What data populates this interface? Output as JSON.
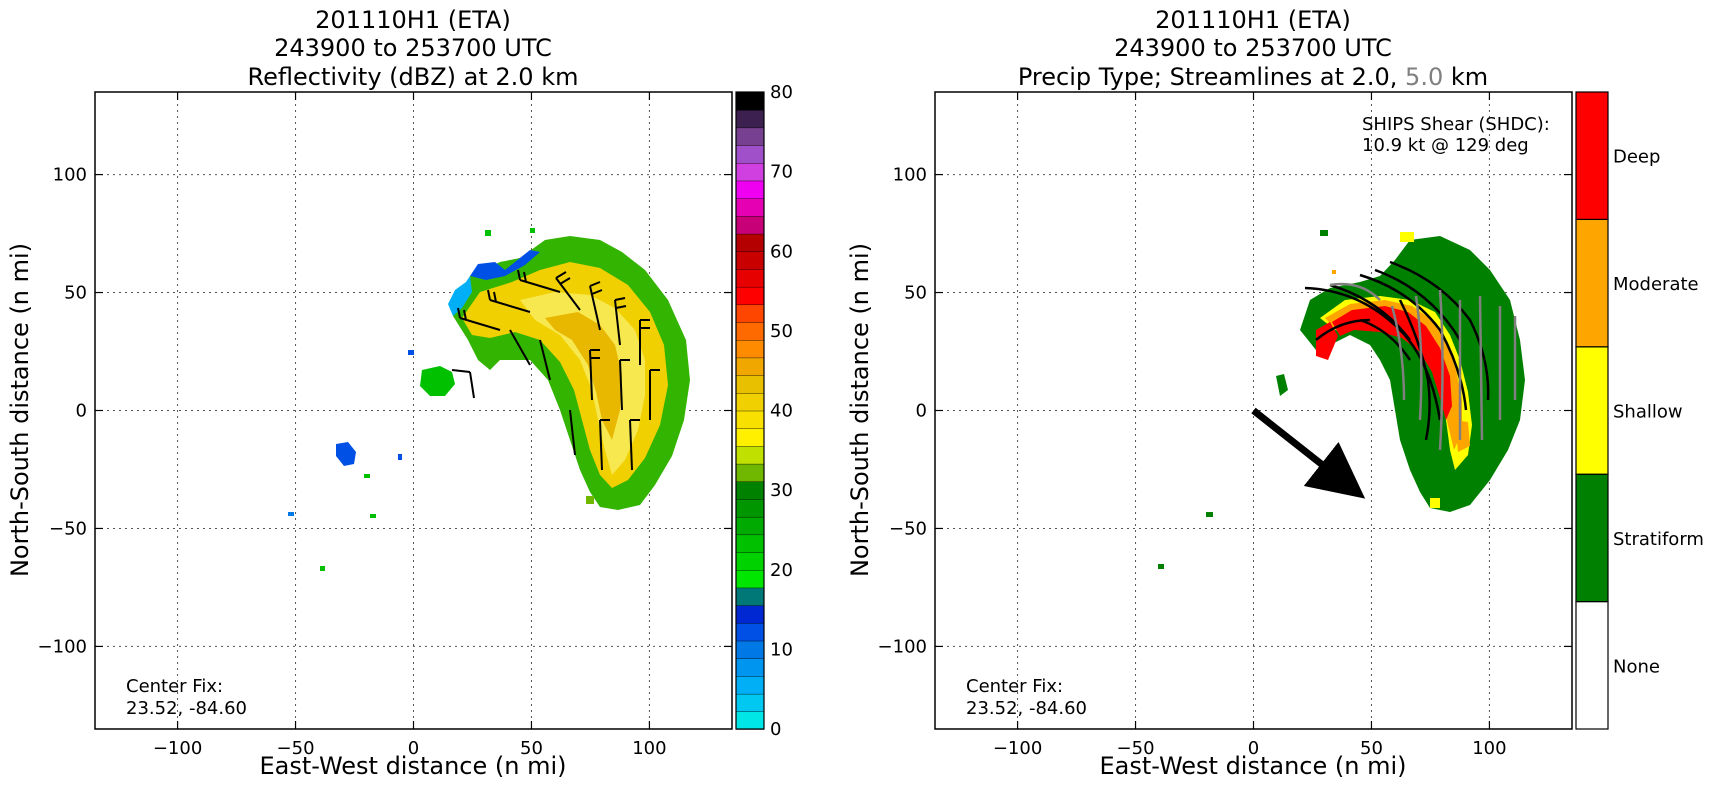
{
  "panels": [
    {
      "title_lines": [
        "201110H1 (ETA)",
        "243900 to 253700 UTC",
        "Reflectivity (dBZ) at 2.0 km"
      ],
      "center_fix_label": "Center Fix:",
      "center_fix_value": "23.52, -84.60"
    },
    {
      "title_lines": [
        "201110H1 (ETA)",
        "243900 to 253700 UTC"
      ],
      "title_line3_prefix": "Precip Type; Streamlines at 2.0,",
      "title_line3_gray": "5.0",
      "title_line3_suffix": "km",
      "shear_label": "SHIPS Shear (SHDC):",
      "shear_value": "10.9 kt @ 129 deg",
      "center_fix_label": "Center Fix:",
      "center_fix_value": "23.52, -84.60"
    }
  ],
  "colors": {
    "stratiform": "#008000",
    "shallow": "#ffff00",
    "moderate": "#ffa500",
    "deep": "#ff0000",
    "none": "#ffffff",
    "gray_streamline": "#808080"
  },
  "chart_data": [
    {
      "type": "heatmap",
      "title": "Reflectivity (dBZ) at 2.0 km",
      "xlabel": "East-West distance (n mi)",
      "ylabel": "North-South distance (n mi)",
      "xlim": [
        -135,
        135
      ],
      "ylim": [
        -135,
        135
      ],
      "xticks": [
        -100,
        -50,
        0,
        50,
        100
      ],
      "yticks": [
        -100,
        -50,
        0,
        50,
        100
      ],
      "xtick_labels": [
        "−100",
        "−50",
        "0",
        "50",
        "100"
      ],
      "ytick_labels": [
        "−100",
        "−50",
        "0",
        "50",
        "100"
      ],
      "grid": true,
      "colorbar": {
        "range": [
          0,
          80
        ],
        "step": 2.5,
        "ticks": [
          0,
          10,
          20,
          30,
          40,
          50,
          60,
          70,
          80
        ],
        "colors": [
          "#00e5e5",
          "#00c8f0",
          "#00aff5",
          "#0096f0",
          "#0078e6",
          "#0050e6",
          "#0028d2",
          "#007878",
          "#00e600",
          "#00d200",
          "#00c000",
          "#00aa00",
          "#009600",
          "#008200",
          "#70b800",
          "#c0e000",
          "#fff000",
          "#f8e000",
          "#f0d000",
          "#e8c000",
          "#f0a800",
          "#ff8c00",
          "#ff6a00",
          "#ff4600",
          "#ff0000",
          "#e60000",
          "#c80000",
          "#b40000",
          "#c80078",
          "#e600b4",
          "#f000f0",
          "#d040e0",
          "#a050c8",
          "#784090",
          "#3c2050",
          "#000000"
        ]
      },
      "text": [
        "Center Fix:",
        "23.52, -84.60"
      ]
    },
    {
      "type": "heatmap",
      "title": "Precip Type; Streamlines at 2.0, 5.0 km",
      "xlabel": "East-West distance (n mi)",
      "ylabel": "North-South distance (n mi)",
      "xlim": [
        -135,
        135
      ],
      "ylim": [
        -135,
        135
      ],
      "xticks": [
        -100,
        -50,
        0,
        50,
        100
      ],
      "yticks": [
        -100,
        -50,
        0,
        50,
        100
      ],
      "xtick_labels": [
        "−100",
        "−50",
        "0",
        "50",
        "100"
      ],
      "ytick_labels": [
        "−100",
        "−50",
        "0",
        "50",
        "100"
      ],
      "grid": true,
      "categories": [
        "None",
        "Stratiform",
        "Shallow",
        "Moderate",
        "Deep"
      ],
      "shear_vector": {
        "from": [
          0,
          0
        ],
        "to": [
          38,
          -30
        ]
      },
      "annotations": [
        "SHIPS Shear (SHDC):",
        "10.9 kt @ 129 deg",
        "Center Fix:",
        "23.52, -84.60"
      ]
    }
  ]
}
